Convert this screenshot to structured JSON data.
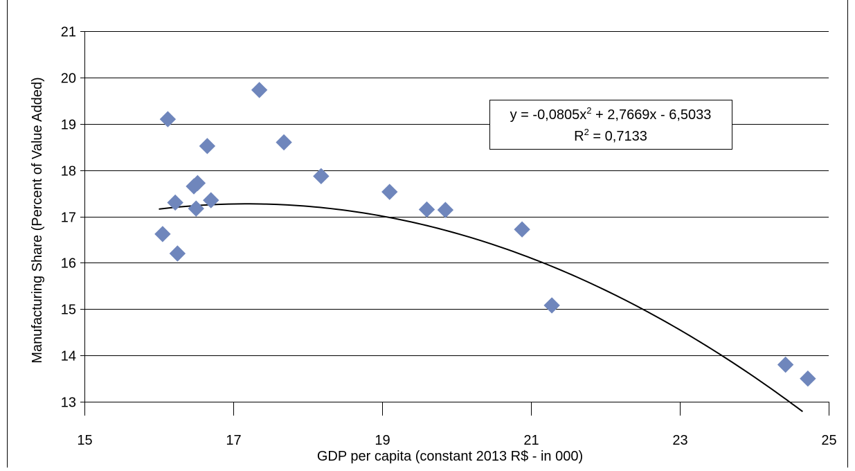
{
  "chart_data": {
    "type": "scatter",
    "title": "",
    "xlabel": "GDP per capita (constant 2013 R$ - in 000)",
    "ylabel": "Manufacturing Share (Percent of Value Added)",
    "xlim": [
      15,
      25
    ],
    "ylim": [
      13,
      21
    ],
    "xticks": [
      "15",
      "17",
      "19",
      "21",
      "23",
      "25"
    ],
    "yticks": [
      "13",
      "14",
      "15",
      "16",
      "17",
      "18",
      "19",
      "20",
      "21"
    ],
    "grid": "horizontal",
    "marker_color": "#6F86BC",
    "series": [
      {
        "points": [
          {
            "x": 16.05,
            "y": 16.62
          },
          {
            "x": 16.12,
            "y": 19.1
          },
          {
            "x": 16.22,
            "y": 17.3
          },
          {
            "x": 16.25,
            "y": 16.2
          },
          {
            "x": 16.47,
            "y": 17.65
          },
          {
            "x": 16.5,
            "y": 17.17
          },
          {
            "x": 16.52,
            "y": 17.72
          },
          {
            "x": 16.65,
            "y": 18.52
          },
          {
            "x": 16.7,
            "y": 17.35
          },
          {
            "x": 17.35,
            "y": 19.73
          },
          {
            "x": 17.68,
            "y": 18.6
          },
          {
            "x": 18.18,
            "y": 17.87
          },
          {
            "x": 19.1,
            "y": 17.53
          },
          {
            "x": 19.6,
            "y": 17.15
          },
          {
            "x": 19.85,
            "y": 17.14
          },
          {
            "x": 20.88,
            "y": 16.72
          },
          {
            "x": 21.28,
            "y": 15.08
          },
          {
            "x": 24.42,
            "y": 13.8
          },
          {
            "x": 24.72,
            "y": 13.5
          }
        ]
      }
    ],
    "trendline": {
      "type": "polynomial",
      "coefficients": [
        -0.0805,
        2.7669,
        -6.5033
      ],
      "x_range": [
        16.0,
        24.65
      ],
      "color": "#000000",
      "equation_line1_a": "y = -0,0805x",
      "equation_line1_sup": "2",
      "equation_line1_b": " + 2,7669x - 6,5033",
      "equation_line2_a": "R",
      "equation_line2_sup": "2",
      "equation_line2_b": " = 0,7133"
    }
  }
}
